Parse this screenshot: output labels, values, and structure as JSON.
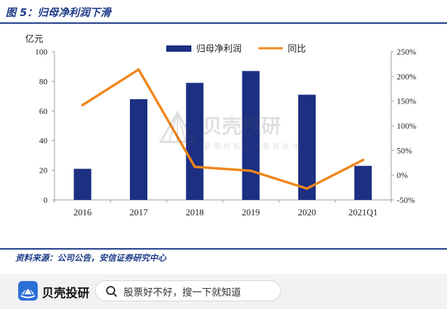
{
  "figure": {
    "title": "图 5：归母净利润下滑",
    "source": "资料来源：公司公告，安信证券研究中心"
  },
  "chart_data": {
    "type": "bar",
    "categories": [
      "2016",
      "2017",
      "2018",
      "2019",
      "2020",
      "2021Q1"
    ],
    "series": [
      {
        "name": "归母净利润",
        "kind": "bar",
        "axis": "left",
        "color": "#1c2f82",
        "values": [
          21,
          68,
          79,
          87,
          71,
          23
        ]
      },
      {
        "name": "同比",
        "kind": "line",
        "axis": "right",
        "color": "#f0861a",
        "values": [
          142,
          214,
          17,
          9,
          -27,
          31
        ]
      }
    ],
    "y_left": {
      "unit_label": "亿元",
      "min": 0,
      "max": 100,
      "ticks": [
        "0",
        "20",
        "40",
        "60",
        "80",
        "100"
      ]
    },
    "y_right": {
      "min": -50,
      "max": 250,
      "ticks": [
        "-50%",
        "0%",
        "50%",
        "100%",
        "150%",
        "200%",
        "250%"
      ]
    },
    "legend_position": "top-center",
    "grid": false
  },
  "watermark": {
    "brand": "贝壳投研",
    "slogan": "聪明的投资者都在关注"
  },
  "footer": {
    "logo_text": "贝壳投研",
    "search_placeholder": "股票好不好，搜一下就知道",
    "logo_icon": "shell-logo-icon",
    "search_icon": "search-icon"
  }
}
